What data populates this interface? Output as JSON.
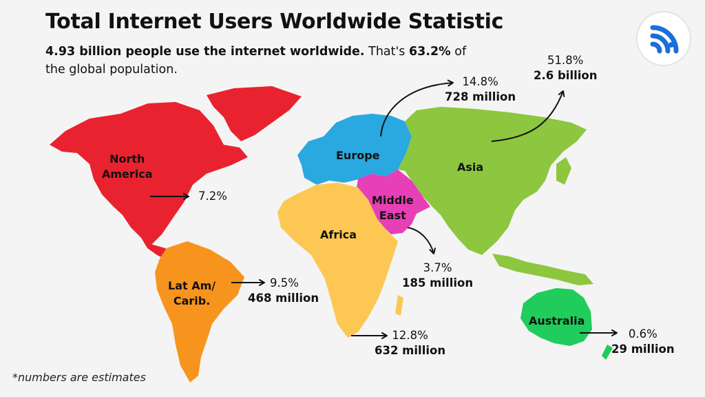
{
  "header": {
    "title": "Total Internet Users Worldwide Statistic",
    "subtitle_bold": "4.93 billion people use the internet worldwide.",
    "subtitle_mid": " That's ",
    "subtitle_pct": "63.2%",
    "subtitle_end": " of the global population."
  },
  "logo": {
    "icon": "wifi-signal-icon",
    "color": "#1a6fd8"
  },
  "map": {
    "regions": [
      {
        "key": "north_america",
        "label": "North\nAmerica",
        "color": "#e8232f",
        "share_pct": "7.2%",
        "users": ""
      },
      {
        "key": "europe",
        "label": "Europe",
        "color": "#2aa8e0",
        "share_pct": "14.8%",
        "users": "728 million"
      },
      {
        "key": "asia",
        "label": "Asia",
        "color": "#8dc63f",
        "share_pct": "51.8%",
        "users": "2.6 billion"
      },
      {
        "key": "middle_east",
        "label": "Middle\nEast",
        "color": "#e73fb5",
        "share_pct": "3.7%",
        "users": "185 million"
      },
      {
        "key": "africa",
        "label": "Africa",
        "color": "#fdc753",
        "share_pct": "12.8%",
        "users": "632 million"
      },
      {
        "key": "lat_am",
        "label": "Lat Am/\nCarib.",
        "color": "#f7941d",
        "share_pct": "9.5%",
        "users": "468 million"
      },
      {
        "key": "australia",
        "label": "Australia",
        "color": "#1fcc5c",
        "share_pct": "0.6%",
        "users": "29 million"
      }
    ]
  },
  "footnote": "*numbers are estimates"
}
